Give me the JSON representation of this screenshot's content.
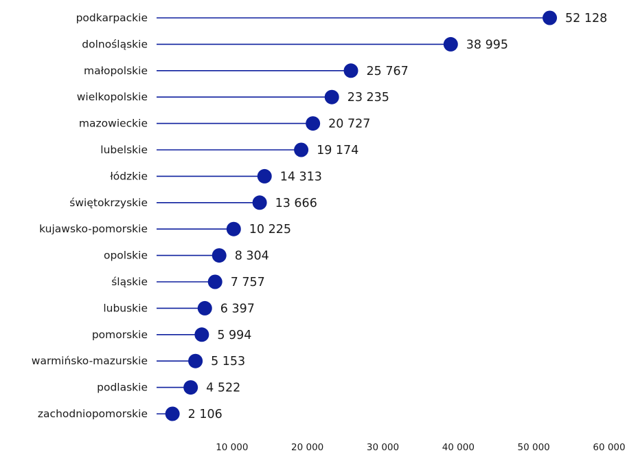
{
  "chart_data": {
    "type": "lollipop",
    "title": "",
    "xlabel": "",
    "ylabel": "",
    "xlim": [
      0,
      60000
    ],
    "x_ticks": [
      10000,
      20000,
      30000,
      40000,
      50000,
      60000
    ],
    "x_tick_labels": [
      "10 000",
      "20 000",
      "30 000",
      "40 000",
      "50 000",
      "60 000"
    ],
    "grid": false,
    "legend": "none",
    "color": "#0d1f9e",
    "categories": [
      "podkarpackie",
      "dolnośląskie",
      "małopolskie",
      "wielkopolskie",
      "mazowieckie",
      "lubelskie",
      "łódzkie",
      "świętokrzyskie",
      "kujawsko-pomorskie",
      "opolskie",
      "śląskie",
      "lubuskie",
      "pomorskie",
      "warmińsko-mazurskie",
      "podlaskie",
      "zachodniopomorskie"
    ],
    "values": [
      52128,
      38995,
      25767,
      23235,
      20727,
      19174,
      14313,
      13666,
      10225,
      8304,
      7757,
      6397,
      5994,
      5153,
      4522,
      2106
    ],
    "value_labels": [
      "52 128",
      "38 995",
      "25 767",
      "23 235",
      "20 727",
      "19 174",
      "14 313",
      "13 666",
      "10 225",
      "8 304",
      "7 757",
      "6 397",
      "5 994",
      "5 153",
      "4 522",
      "2 106"
    ]
  }
}
